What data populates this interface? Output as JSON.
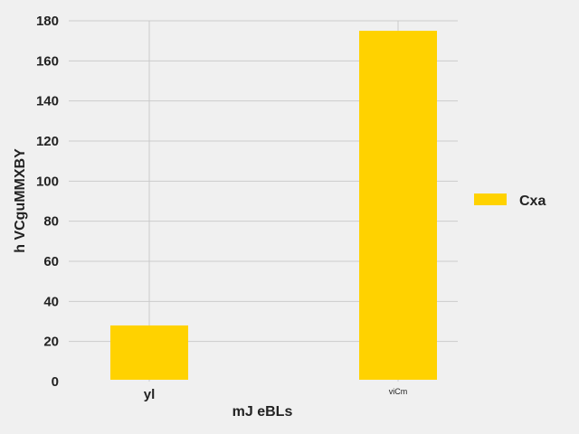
{
  "chart_data": {
    "type": "bar",
    "categories": [
      "yl",
      "viCm"
    ],
    "series": [
      {
        "name": "Cxa",
        "values": [
          28,
          175
        ],
        "color": "#ffd200"
      }
    ],
    "xlabel": "mJ eBLs",
    "ylabel": "h VCguMMXBY",
    "ylim": [
      0,
      180
    ],
    "yticks": [
      0,
      20,
      40,
      60,
      80,
      100,
      120,
      140,
      160,
      180
    ],
    "grid": true,
    "legend_position": "right"
  }
}
